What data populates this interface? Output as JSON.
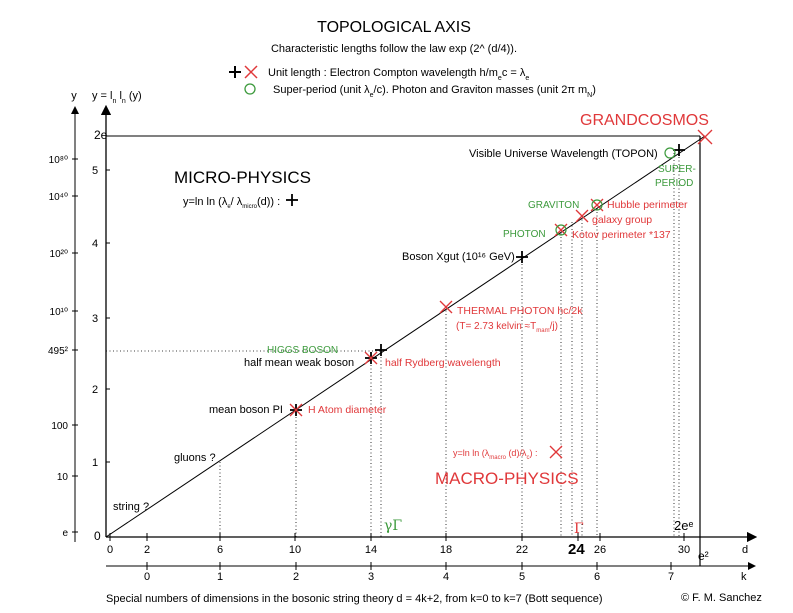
{
  "title": "TOPOLOGICAL AXIS",
  "subtitle": "Characteristic lengths follow the law exp (2^ (d/4)).",
  "legend": {
    "unit_length": "Unit length : Electron Compton wavelength h/m",
    "unit_length_sub_e": "e",
    "unit_length_tail": "c = λ",
    "unit_length_sub_e2": "e",
    "super_period": "Super-period (unit λ",
    "super_period_sub": "e",
    "super_period_tail": "/c). Photon and Graviton masses (unit 2π m",
    "super_period_sub2": "N",
    "super_period_end": ")",
    "colors": {
      "cross": "#000000",
      "x": "#e0383a",
      "circle": "#3c9a3c"
    }
  },
  "axes": {
    "y_letter": "y",
    "y_formula": "y = l",
    "y_formula_sub1": "n",
    "y_formula_mid": " l",
    "y_formula_sub2": "n",
    "y_formula_tail": " (y)",
    "d_label": "d",
    "k_label": "k",
    "d_ticks": [
      "0",
      "2",
      "6",
      "10",
      "14",
      "18",
      "22",
      "26",
      "30"
    ],
    "d_special": "24",
    "k_ticks": [
      "0",
      "1",
      "2",
      "3",
      "4",
      "5",
      "6",
      "7"
    ],
    "k_end": "e²",
    "y_ticks": [
      "1",
      "2",
      "3",
      "4",
      "5"
    ],
    "y_left_labels": [
      "e",
      "10",
      "100",
      "495²",
      "10¹⁰",
      "10²⁰",
      "10⁴⁰",
      "10⁸⁰"
    ],
    "y_2e": "2e",
    "y_zero": "0",
    "x_2ee": "2eᵉ",
    "gamma": "γΓ",
    "Gamma": "Γ"
  },
  "regions": {
    "micro": "MICRO-PHYSICS",
    "micro_formula": "y=ln ln (λ",
    "micro_formula_sub1": "e",
    "micro_formula_mid": "/ λ",
    "micro_formula_sub2": "micro",
    "micro_formula_tail": "(d)) :",
    "macro": "MACRO-PHYSICS",
    "macro_formula": "y=ln ln (λ",
    "macro_formula_sub1": "macro",
    "macro_formula_mid": " (d)/λ",
    "macro_formula_sub2": "c",
    "macro_formula_tail": ") :",
    "grandcosmos": "GRANDCOSMOS"
  },
  "points": {
    "visible_universe": "Visible Universe Wavelength (TOPON)",
    "super_period": "SUPER-",
    "super_period2": "PERIOD",
    "graviton": "GRAVITON",
    "hubble": "Hubble perimeter",
    "galaxy_group": "galaxy group",
    "photon": "PHOTON",
    "kotov": "Kotov perimeter *137",
    "boson_xgut": "Boson Xgut (10¹⁶ GeV)",
    "thermal_photon": "THERMAL PHOTON hc/2k",
    "thermal_photon2": "(T= 2.73  kelvin ≈T",
    "thermal_photon_sub": "mam",
    "thermal_photon_tail": "/j)",
    "higgs": "HIGGS BOSON",
    "half_mean_weak": "half mean weak boson",
    "half_rydberg": "half Rydberg wavelength",
    "mean_boson_pi": "mean boson PI",
    "h_atom": "H Atom diameter",
    "gluons": "gluons ?",
    "string": "string ?"
  },
  "footer": "Special numbers of dimensions in the bosonic string theory d = 4k+2, from k=0 to k=7 (Bott sequence)",
  "credit": "© F. M. Sanchez"
}
